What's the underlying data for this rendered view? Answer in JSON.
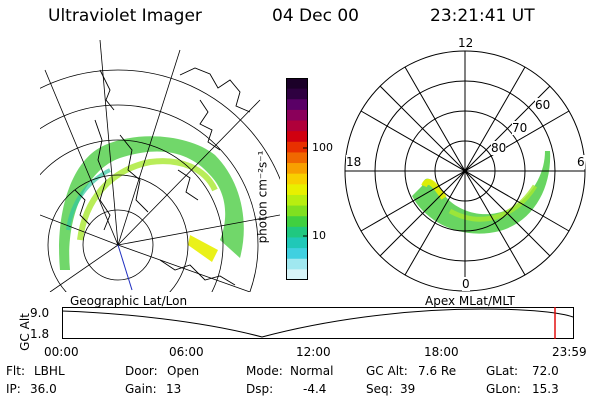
{
  "header": {
    "title": "Ultraviolet Imager",
    "date": "04 Dec 00",
    "time": "23:21:41 UT"
  },
  "colorbar": {
    "unit_label": "photon cm⁻²s⁻¹",
    "ticks": [
      "100",
      "10"
    ],
    "colors": [
      "#1b0028",
      "#2e0040",
      "#5a0066",
      "#8a005a",
      "#b0003a",
      "#d00010",
      "#e83000",
      "#f06800",
      "#f8a000",
      "#f8d000",
      "#e8f000",
      "#b8ee10",
      "#80e020",
      "#40d040",
      "#20c880",
      "#20c8b8",
      "#40d0e0",
      "#a0e8f0",
      "#d8f4f8"
    ]
  },
  "left_map": {
    "caption": "Geographic Lat/Lon"
  },
  "polar_plot": {
    "caption": "Apex MLat/MLT",
    "mlt_labels": {
      "top": "12",
      "right": "6",
      "bottom": "0",
      "left": "18"
    },
    "mlat_labels": [
      "60",
      "70",
      "80"
    ]
  },
  "altitude_plot": {
    "axis_label": "GC Alt",
    "y_ticks": [
      "9.0",
      "1.8"
    ],
    "x_ticks": [
      "00:00",
      "06:00",
      "12:00",
      "18:00",
      "23:59"
    ],
    "current_marker_color": "#e00000"
  },
  "status": {
    "flt_label": "Flt:",
    "flt_value": "LBHL",
    "ip_label": "IP:",
    "ip_value": "36.0",
    "door_label": "Door:",
    "door_value": "Open",
    "gain_label": "Gain:",
    "gain_value": "13",
    "mode_label": "Mode:",
    "mode_value": "Normal",
    "dsp_label": "Dsp:",
    "dsp_value": "-4.4",
    "gcalt_label": "GC Alt:",
    "gcalt_value": "7.6 Re",
    "seq_label": "Seq:",
    "seq_value": "39",
    "glat_label": "GLat:",
    "glat_value": "72.0",
    "glon_label": "GLon:",
    "glon_value": "15.3"
  }
}
